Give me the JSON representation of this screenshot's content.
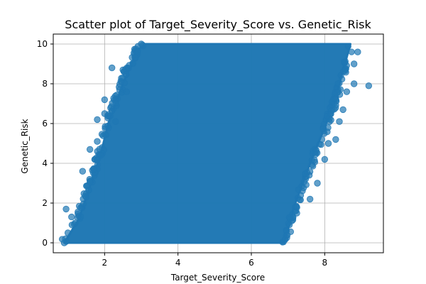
{
  "chart_data": {
    "type": "scatter",
    "title": "Scatter plot of Target_Severity_Score vs. Genetic_Risk",
    "xlabel": "Target_Severity_Score",
    "ylabel": "Genetic_Risk",
    "xlim": [
      0.6,
      9.6
    ],
    "ylim": [
      -0.5,
      10.5
    ],
    "x_ticks": [
      2,
      4,
      6,
      8
    ],
    "y_ticks": [
      0,
      2,
      4,
      6,
      8,
      10
    ],
    "grid": true,
    "marker_color": "#1f77b4",
    "marker_alpha": 0.7,
    "dense_region": {
      "description_points": [
        [
          1.0,
          0.0
        ],
        [
          2.9,
          10.0
        ],
        [
          6.4,
          10.0
        ],
        [
          8.8,
          10.0
        ],
        [
          6.9,
          0.0
        ]
      ],
      "left_edge": [
        [
          0.9,
          0.0
        ],
        [
          1.3,
          1.2
        ],
        [
          1.9,
          4.5
        ],
        [
          2.1,
          6.0
        ],
        [
          2.5,
          8.0
        ],
        [
          2.9,
          9.7
        ],
        [
          3.1,
          10.0
        ]
      ],
      "right_edge": [
        [
          8.7,
          10.0
        ],
        [
          8.4,
          8.0
        ],
        [
          8.0,
          5.8
        ],
        [
          7.6,
          4.0
        ],
        [
          7.2,
          2.0
        ],
        [
          6.9,
          0.0
        ]
      ]
    },
    "points": [
      {
        "x": 0.9,
        "y": 0.0
      },
      {
        "x": 0.95,
        "y": 1.7
      },
      {
        "x": 1.0,
        "y": 0.5
      },
      {
        "x": 1.1,
        "y": 1.3
      },
      {
        "x": 1.2,
        "y": 1.0
      },
      {
        "x": 1.4,
        "y": 3.6
      },
      {
        "x": 1.5,
        "y": 2.3
      },
      {
        "x": 1.7,
        "y": 3.7
      },
      {
        "x": 1.6,
        "y": 4.7
      },
      {
        "x": 1.8,
        "y": 5.1
      },
      {
        "x": 1.8,
        "y": 6.2
      },
      {
        "x": 1.9,
        "y": 4.4
      },
      {
        "x": 2.0,
        "y": 6.5
      },
      {
        "x": 2.0,
        "y": 7.2
      },
      {
        "x": 2.2,
        "y": 8.8
      },
      {
        "x": 2.3,
        "y": 6.1
      },
      {
        "x": 2.5,
        "y": 8.7
      },
      {
        "x": 2.6,
        "y": 7.6
      },
      {
        "x": 2.9,
        "y": 9.6
      },
      {
        "x": 3.0,
        "y": 10.0
      },
      {
        "x": 7.6,
        "y": 2.2
      },
      {
        "x": 7.8,
        "y": 3.0
      },
      {
        "x": 8.0,
        "y": 4.2
      },
      {
        "x": 8.1,
        "y": 5.0
      },
      {
        "x": 8.3,
        "y": 5.2
      },
      {
        "x": 8.4,
        "y": 6.1
      },
      {
        "x": 8.5,
        "y": 6.7
      },
      {
        "x": 8.6,
        "y": 7.6
      },
      {
        "x": 8.8,
        "y": 8.0
      },
      {
        "x": 8.8,
        "y": 9.0
      },
      {
        "x": 8.9,
        "y": 9.6
      },
      {
        "x": 9.2,
        "y": 7.9
      }
    ]
  }
}
